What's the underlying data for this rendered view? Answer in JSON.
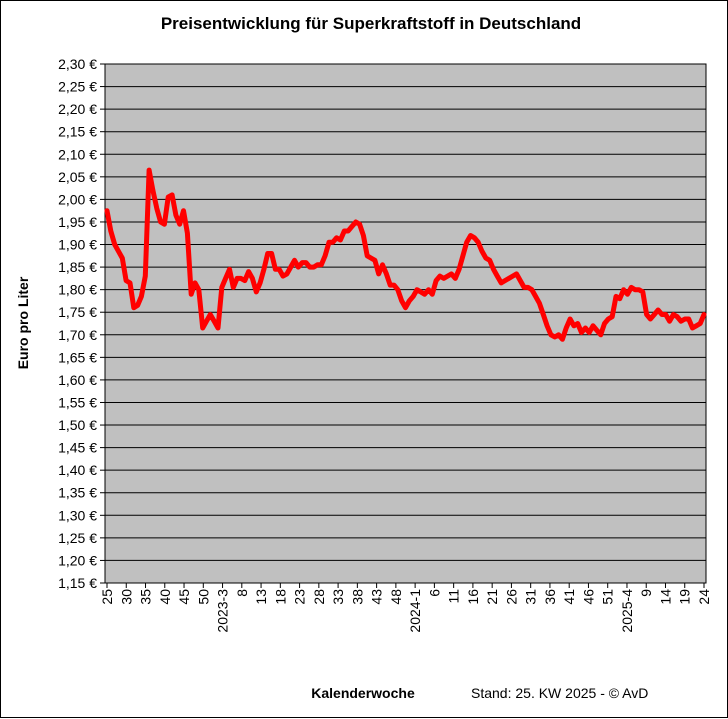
{
  "chart_data": {
    "type": "line",
    "title": "Preisentwicklung für Superkraftstoff in Deutschland",
    "ylabel": "Euro pro Liter",
    "xlabel": "Kalenderwoche",
    "footer": "Stand: 25. KW 2025 - © AvD",
    "ylim": [
      1.15,
      2.3
    ],
    "ystep": 0.05,
    "y_ticks": [
      "1,15 €",
      "1,20 €",
      "1,25 €",
      "1,30 €",
      "1,35 €",
      "1,40 €",
      "1,45 €",
      "1,50 €",
      "1,55 €",
      "1,60 €",
      "1,65 €",
      "1,70 €",
      "1,75 €",
      "1,80 €",
      "1,85 €",
      "1,90 €",
      "1,95 €",
      "2,00 €",
      "2,05 €",
      "2,10 €",
      "2,15 €",
      "2,20 €",
      "2,25 €",
      "2,30 €"
    ],
    "x_ticks": [
      "25",
      "30",
      "35",
      "40",
      "45",
      "50",
      "2023-3",
      "8",
      "13",
      "18",
      "23",
      "28",
      "33",
      "38",
      "43",
      "48",
      "2024-1",
      "6",
      "11",
      "16",
      "21",
      "26",
      "31",
      "36",
      "41",
      "46",
      "51",
      "2025-4",
      "9",
      "14",
      "19",
      "24"
    ],
    "grid": true,
    "legend": "none",
    "background": "#c0c0c0",
    "line_color": "#ff0000",
    "series": [
      {
        "values": [
          1.975,
          1.93,
          1.9,
          1.885,
          1.87,
          1.82,
          1.815,
          1.76,
          1.765,
          1.785,
          1.83,
          2.065,
          2.02,
          1.98,
          1.95,
          1.945,
          2.005,
          2.01,
          1.965,
          1.945,
          1.975,
          1.925,
          1.79,
          1.815,
          1.8,
          1.715,
          1.73,
          1.745,
          1.73,
          1.715,
          1.805,
          1.825,
          1.845,
          1.805,
          1.825,
          1.825,
          1.82,
          1.84,
          1.825,
          1.795,
          1.815,
          1.845,
          1.88,
          1.88,
          1.845,
          1.845,
          1.83,
          1.835,
          1.85,
          1.865,
          1.85,
          1.86,
          1.86,
          1.85,
          1.85,
          1.855,
          1.855,
          1.875,
          1.905,
          1.905,
          1.915,
          1.91,
          1.93,
          1.93,
          1.94,
          1.95,
          1.945,
          1.92,
          1.875,
          1.87,
          1.865,
          1.835,
          1.855,
          1.835,
          1.81,
          1.81,
          1.8,
          1.775,
          1.76,
          1.775,
          1.785,
          1.8,
          1.795,
          1.79,
          1.8,
          1.79,
          1.82,
          1.83,
          1.825,
          1.83,
          1.835,
          1.825,
          1.845,
          1.875,
          1.905,
          1.92,
          1.915,
          1.905,
          1.885,
          1.87,
          1.865,
          1.845,
          1.83,
          1.815,
          1.82,
          1.825,
          1.83,
          1.835,
          1.82,
          1.805,
          1.805,
          1.8,
          1.785,
          1.77,
          1.745,
          1.72,
          1.7,
          1.695,
          1.7,
          1.69,
          1.715,
          1.735,
          1.72,
          1.725,
          1.705,
          1.715,
          1.705,
          1.72,
          1.71,
          1.7,
          1.725,
          1.735,
          1.74,
          1.785,
          1.78,
          1.8,
          1.79,
          1.805,
          1.8,
          1.8,
          1.795,
          1.745,
          1.735,
          1.745,
          1.755,
          1.745,
          1.745,
          1.73,
          1.745,
          1.74,
          1.73,
          1.735,
          1.735,
          1.715,
          1.72,
          1.725,
          1.745
        ]
      }
    ]
  }
}
